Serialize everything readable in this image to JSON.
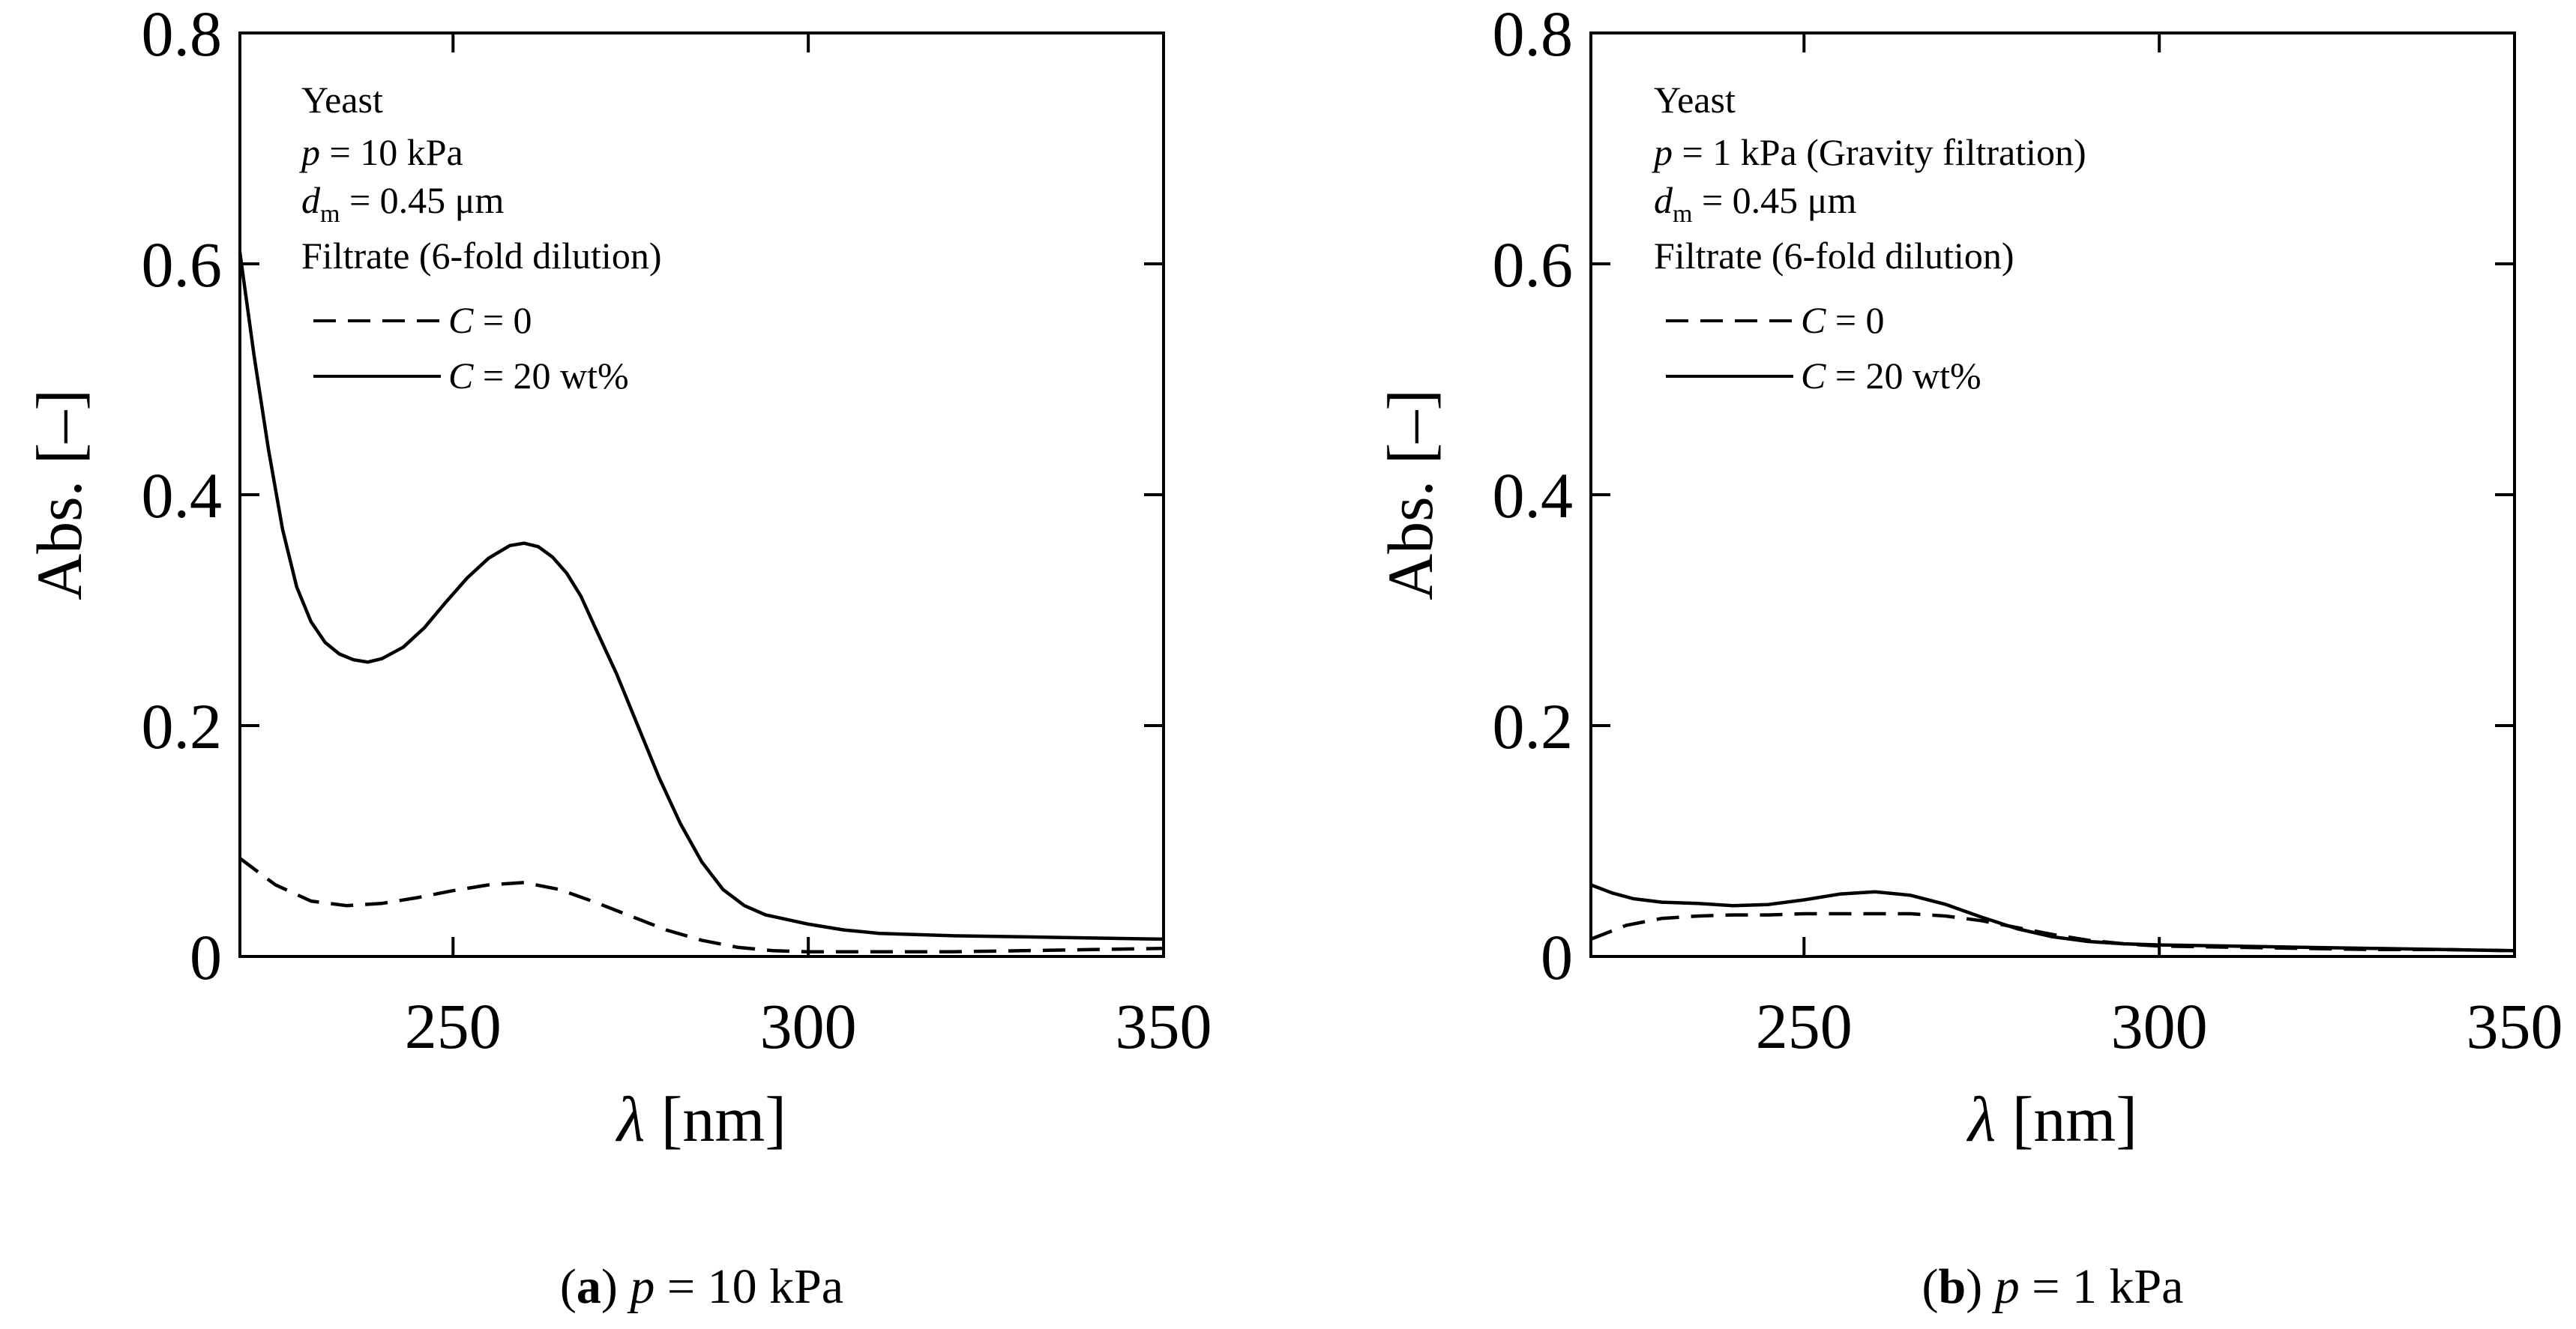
{
  "chart_data": [
    {
      "type": "line",
      "panel": "a",
      "caption": {
        "letter": "a",
        "var": "p",
        "rest": " = 10 kPa"
      },
      "xlabel": {
        "sym": "λ",
        "unit": " [nm]"
      },
      "ylabel": "Abs. [–]",
      "xlim": [
        220,
        350
      ],
      "ylim": [
        0,
        0.8
      ],
      "xticks": [
        250,
        300,
        350
      ],
      "yticks": [
        0,
        0.2,
        0.4,
        0.6,
        0.8
      ],
      "ytick_labels": [
        "0",
        "0.2",
        "0.4",
        "0.6",
        "0.8"
      ],
      "annotation": {
        "line1": "Yeast",
        "p_var": "p",
        "p_rest": " = 10 kPa",
        "d_var": "d",
        "d_sub": "m",
        "d_rest": " = 0.45 μm",
        "line4": "Filtrate (6-fold dilution)"
      },
      "legend": [
        {
          "var": "C",
          "rest": " = 0",
          "style": "dashed"
        },
        {
          "var": "C",
          "rest": " = 20 wt%",
          "style": "solid"
        }
      ],
      "series": [
        {
          "name": "C = 0",
          "style": "dashed",
          "x": [
            220,
            225,
            230,
            235,
            240,
            245,
            250,
            255,
            260,
            265,
            270,
            275,
            280,
            285,
            290,
            295,
            300,
            310,
            320,
            330,
            340,
            350
          ],
          "y": [
            0.085,
            0.062,
            0.048,
            0.044,
            0.046,
            0.051,
            0.057,
            0.062,
            0.064,
            0.058,
            0.047,
            0.035,
            0.023,
            0.014,
            0.008,
            0.005,
            0.004,
            0.004,
            0.004,
            0.005,
            0.006,
            0.007
          ]
        },
        {
          "name": "C = 20 wt%",
          "style": "solid",
          "x": [
            220,
            222,
            224,
            226,
            228,
            230,
            232,
            234,
            236,
            238,
            240,
            243,
            246,
            249,
            252,
            255,
            258,
            260,
            262,
            264,
            266,
            268,
            270,
            273,
            276,
            279,
            282,
            285,
            288,
            291,
            294,
            297,
            300,
            305,
            310,
            320,
            330,
            340,
            350
          ],
          "y": [
            0.61,
            0.52,
            0.44,
            0.37,
            0.32,
            0.29,
            0.272,
            0.262,
            0.257,
            0.255,
            0.258,
            0.268,
            0.285,
            0.307,
            0.328,
            0.345,
            0.356,
            0.358,
            0.355,
            0.346,
            0.332,
            0.312,
            0.285,
            0.245,
            0.2,
            0.155,
            0.115,
            0.082,
            0.058,
            0.044,
            0.036,
            0.032,
            0.028,
            0.023,
            0.02,
            0.018,
            0.017,
            0.016,
            0.015
          ]
        }
      ]
    },
    {
      "type": "line",
      "panel": "b",
      "caption": {
        "letter": "b",
        "var": "p",
        "rest": " = 1 kPa"
      },
      "xlabel": {
        "sym": "λ",
        "unit": " [nm]"
      },
      "ylabel": "Abs. [–]",
      "xlim": [
        220,
        350
      ],
      "ylim": [
        0,
        0.8
      ],
      "xticks": [
        250,
        300,
        350
      ],
      "yticks": [
        0,
        0.2,
        0.4,
        0.6,
        0.8
      ],
      "ytick_labels": [
        "0",
        "0.2",
        "0.4",
        "0.6",
        "0.8"
      ],
      "annotation": {
        "line1": "Yeast",
        "p_var": "p",
        "p_rest": " = 1 kPa (Gravity filtration)",
        "d_var": "d",
        "d_sub": "m",
        "d_rest": " = 0.45 μm",
        "line4": "Filtrate (6-fold dilution)"
      },
      "legend": [
        {
          "var": "C",
          "rest": " = 0",
          "style": "dashed"
        },
        {
          "var": "C",
          "rest": " = 20 wt%",
          "style": "solid"
        }
      ],
      "series": [
        {
          "name": "C = 0",
          "style": "dashed",
          "x": [
            220,
            225,
            230,
            235,
            240,
            245,
            250,
            255,
            260,
            265,
            270,
            275,
            280,
            285,
            290,
            295,
            300,
            310,
            320,
            330,
            340,
            350
          ],
          "y": [
            0.015,
            0.027,
            0.033,
            0.035,
            0.036,
            0.036,
            0.037,
            0.037,
            0.037,
            0.037,
            0.035,
            0.031,
            0.025,
            0.019,
            0.014,
            0.011,
            0.009,
            0.008,
            0.007,
            0.006,
            0.006,
            0.005
          ]
        },
        {
          "name": "C = 20 wt%",
          "style": "solid",
          "x": [
            220,
            223,
            226,
            230,
            235,
            240,
            245,
            250,
            255,
            260,
            265,
            270,
            275,
            280,
            285,
            290,
            295,
            300,
            310,
            320,
            330,
            340,
            350
          ],
          "y": [
            0.062,
            0.055,
            0.05,
            0.047,
            0.046,
            0.044,
            0.045,
            0.049,
            0.054,
            0.056,
            0.053,
            0.045,
            0.034,
            0.024,
            0.017,
            0.013,
            0.011,
            0.01,
            0.009,
            0.008,
            0.007,
            0.006,
            0.005
          ]
        }
      ]
    }
  ]
}
